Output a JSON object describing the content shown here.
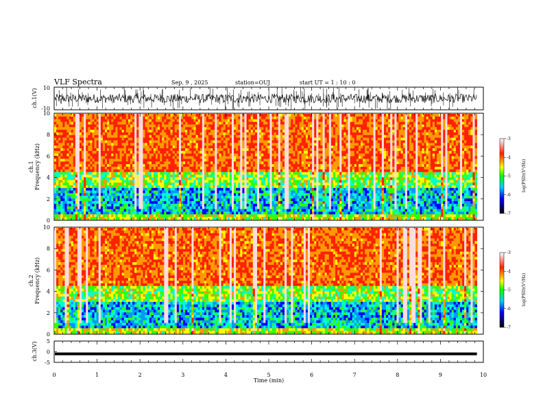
{
  "header": {
    "title": "VLF Spectra",
    "date": "Sep. 9 , 2025",
    "station": "station=OUJ",
    "start": "start  UT =   1 : 10 : 0"
  },
  "chart_data": [
    {
      "type": "line",
      "panel": "ch1-waveform",
      "ylabel": "ch.1(V)",
      "ylim": [
        -10,
        10
      ],
      "yticks": [
        "10",
        "-10"
      ],
      "xlim": [
        0,
        10
      ],
      "description_values": {
        "baseline": 0,
        "typical_range": [
          -4,
          4
        ],
        "spike_max": 10
      }
    },
    {
      "type": "heatmap",
      "panel": "ch1-spectrogram",
      "ylabel_line1": "ch.1",
      "ylabel_line2": "Frequency (kHz)",
      "ylim": [
        0,
        10
      ],
      "yticks": [
        "0",
        "2",
        "4",
        "6",
        "8",
        "10"
      ],
      "xlim": [
        0,
        9.85
      ],
      "colorbar": {
        "label": "log(PSD)(V²/Hz)",
        "range": [
          -7,
          -3
        ],
        "ticks": [
          "-3",
          "-4",
          "-5",
          "-6",
          "-7"
        ]
      }
    },
    {
      "type": "heatmap",
      "panel": "ch2-spectrogram",
      "ylabel_line1": "ch.2",
      "ylabel_line2": "Frequency (kHz)",
      "ylim": [
        0,
        10
      ],
      "yticks": [
        "0",
        "2",
        "4",
        "6",
        "8",
        "10"
      ],
      "xlim": [
        0,
        9.85
      ],
      "colorbar": {
        "label": "log(PSD)(V²/Hz)",
        "range": [
          -7,
          -3
        ],
        "ticks": [
          "-3",
          "-4",
          "-5",
          "-6",
          "-7"
        ]
      }
    },
    {
      "type": "line",
      "panel": "ch3-waveform",
      "ylabel": "ch.3(V)",
      "ylim": [
        -5,
        5
      ],
      "yticks": [
        "5",
        "0",
        "-5"
      ],
      "values_constant": -1
    }
  ],
  "xaxis": {
    "label": "Time (min)",
    "range": [
      0,
      10
    ],
    "ticks": [
      "0",
      "1",
      "2",
      "3",
      "4",
      "5",
      "6",
      "7",
      "8",
      "9",
      "10"
    ]
  }
}
